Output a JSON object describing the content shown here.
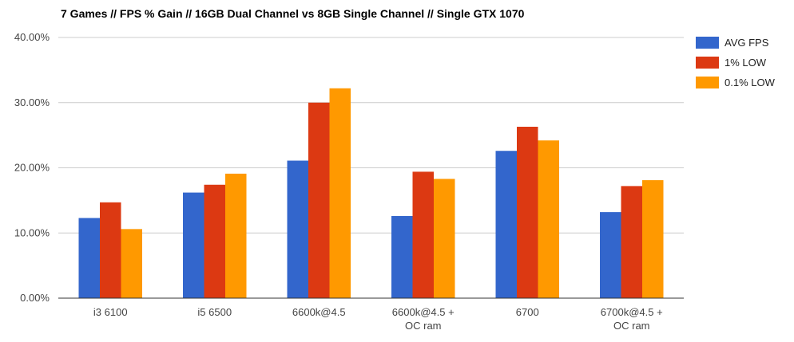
{
  "chart_data": {
    "type": "bar",
    "title": "7 Games // FPS % Gain // 16GB Dual Channel vs 8GB Single Channel // Single GTX 1070",
    "xlabel": "",
    "ylabel": "",
    "ylim": [
      0,
      40
    ],
    "yticks": [
      "0.00%",
      "10.00%",
      "20.00%",
      "30.00%",
      "40.00%"
    ],
    "categories": [
      [
        "i3 6100"
      ],
      [
        "i5 6500"
      ],
      [
        "6600k@4.5"
      ],
      [
        "6600k@4.5 +",
        "OC ram"
      ],
      [
        "6700"
      ],
      [
        "6700k@4.5 +",
        "OC ram"
      ]
    ],
    "series": [
      {
        "name": "AVG FPS",
        "color": "#3366cc",
        "values": [
          12.3,
          16.2,
          21.1,
          12.6,
          22.6,
          13.2
        ]
      },
      {
        "name": "1% LOW",
        "color": "#dc3912",
        "values": [
          14.7,
          17.4,
          30.0,
          19.4,
          26.3,
          17.2
        ]
      },
      {
        "name": "0.1% LOW",
        "color": "#ff9900",
        "values": [
          10.6,
          19.1,
          32.2,
          18.3,
          24.2,
          18.1
        ]
      }
    ],
    "grid": true,
    "legend": "right"
  }
}
